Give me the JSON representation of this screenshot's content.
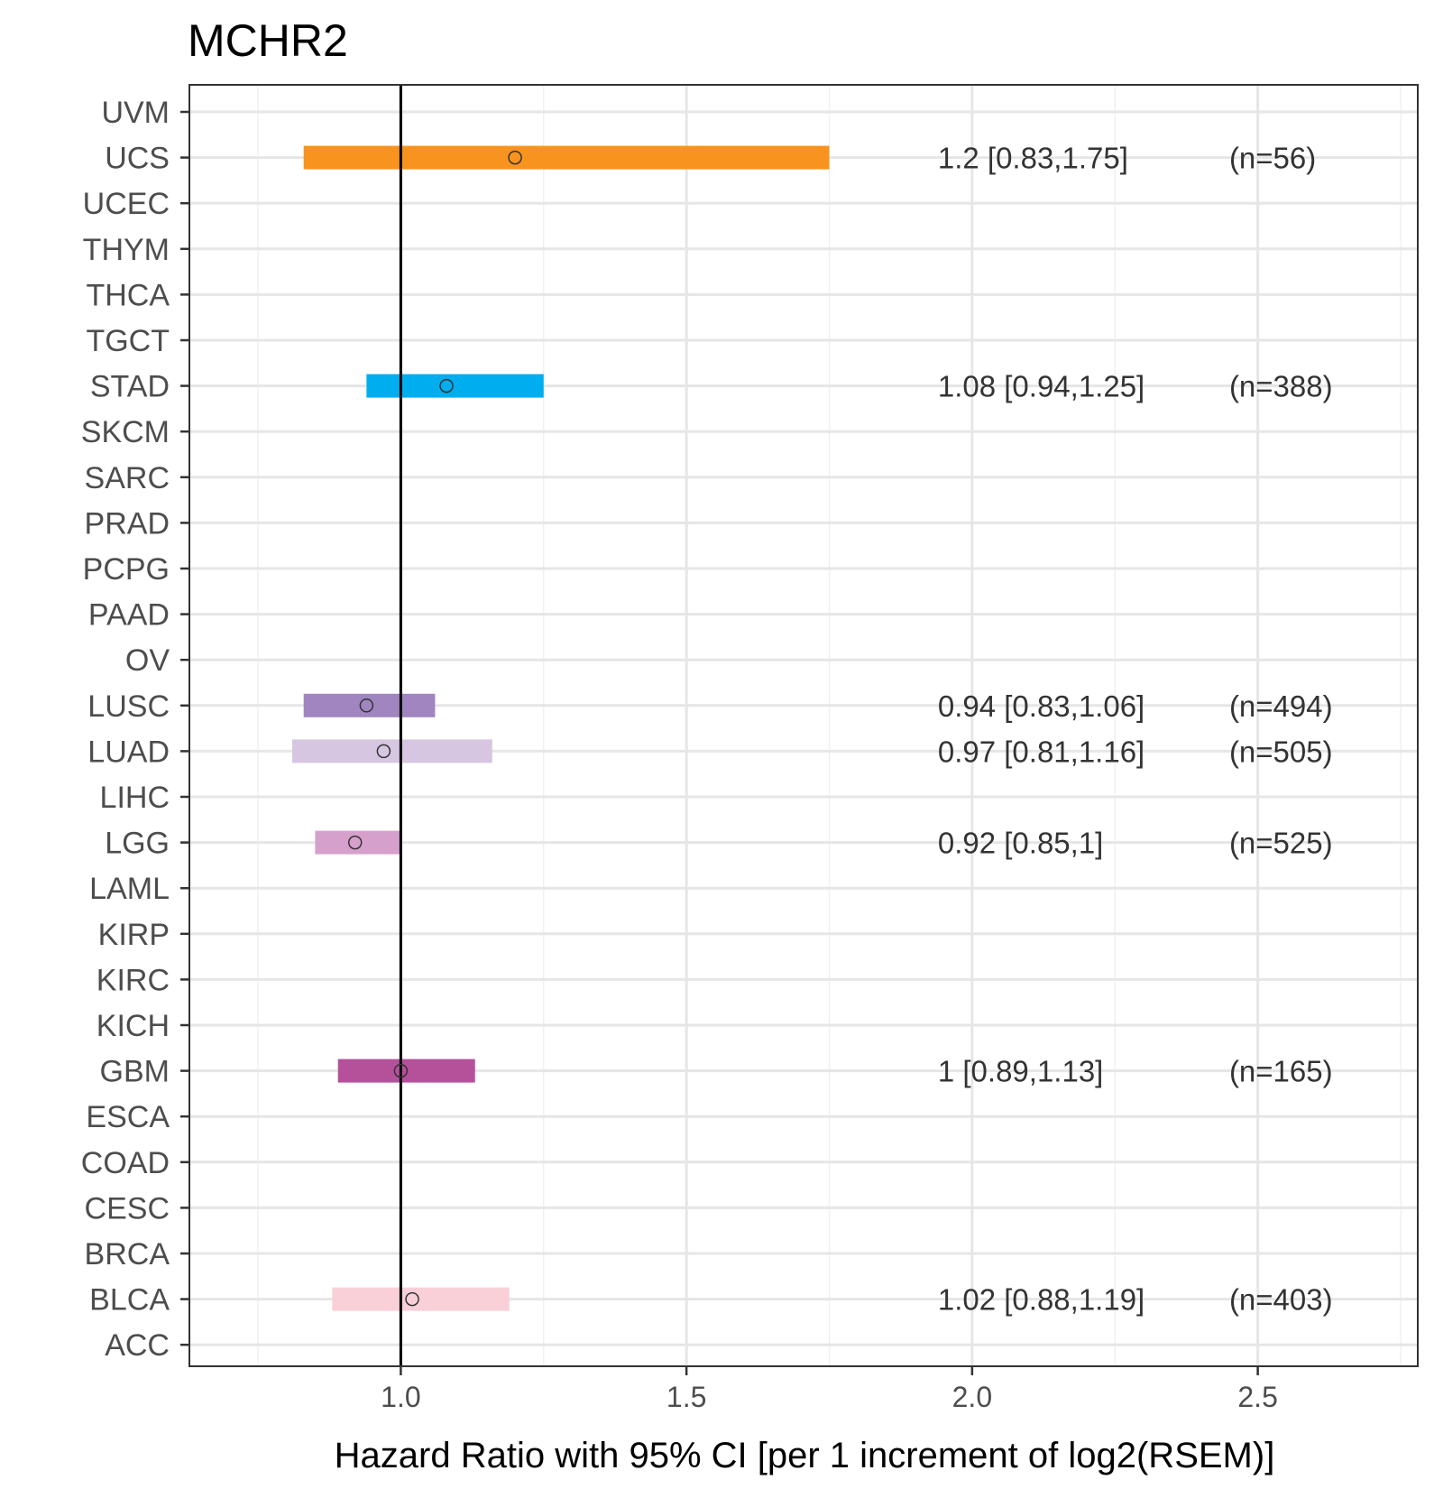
{
  "chart_data": {
    "type": "forest",
    "title": "MCHR2",
    "xlabel": "Hazard Ratio with 95% CI [per 1 increment of log2(RSEM)]",
    "ylabel": "",
    "xlim": [
      0.63,
      2.78
    ],
    "x_ticks": [
      "1.0",
      "1.5",
      "2.0",
      "2.5"
    ],
    "x_tick_values": [
      1.0,
      1.5,
      2.0,
      2.5
    ],
    "x_minor_gridlines": [
      0.75,
      1.25,
      1.75,
      2.25,
      2.75
    ],
    "reference_line": 1.0,
    "grid": true,
    "categories": [
      "UVM",
      "UCS",
      "UCEC",
      "THYM",
      "THCA",
      "TGCT",
      "STAD",
      "SKCM",
      "SARC",
      "PRAD",
      "PCPG",
      "PAAD",
      "OV",
      "LUSC",
      "LUAD",
      "LIHC",
      "LGG",
      "LAML",
      "KIRP",
      "KIRC",
      "KICH",
      "GBM",
      "ESCA",
      "COAD",
      "CESC",
      "BRCA",
      "BLCA",
      "ACC"
    ],
    "estimates": [
      {
        "category": "UCS",
        "hr": 1.2,
        "lower": 0.83,
        "upper": 1.75,
        "label": "1.2 [0.83,1.75]",
        "n_label": "(n=56)",
        "color": "#F7931E"
      },
      {
        "category": "STAD",
        "hr": 1.08,
        "lower": 0.94,
        "upper": 1.25,
        "label": "1.08 [0.94,1.25]",
        "n_label": "(n=388)",
        "color": "#00AEEF"
      },
      {
        "category": "LUSC",
        "hr": 0.94,
        "lower": 0.83,
        "upper": 1.06,
        "label": "0.94 [0.83,1.06]",
        "n_label": "(n=494)",
        "color": "#A085C0"
      },
      {
        "category": "LUAD",
        "hr": 0.97,
        "lower": 0.81,
        "upper": 1.16,
        "label": "0.97 [0.81,1.16]",
        "n_label": "(n=505)",
        "color": "#D6C6E1"
      },
      {
        "category": "LGG",
        "hr": 0.92,
        "lower": 0.85,
        "upper": 1.0,
        "label": "0.92 [0.85,1]",
        "n_label": "(n=525)",
        "color": "#D6A0CC"
      },
      {
        "category": "GBM",
        "hr": 1.0,
        "lower": 0.89,
        "upper": 1.13,
        "label": "1 [0.89,1.13]",
        "n_label": "(n=165)",
        "color": "#B5509B"
      },
      {
        "category": "BLCA",
        "hr": 1.02,
        "lower": 0.88,
        "upper": 1.19,
        "label": "1.02 [0.88,1.19]",
        "n_label": "(n=403)",
        "color": "#F9D0D8"
      }
    ],
    "annotation_label_x": 1.94,
    "annotation_n_x": 2.45
  }
}
